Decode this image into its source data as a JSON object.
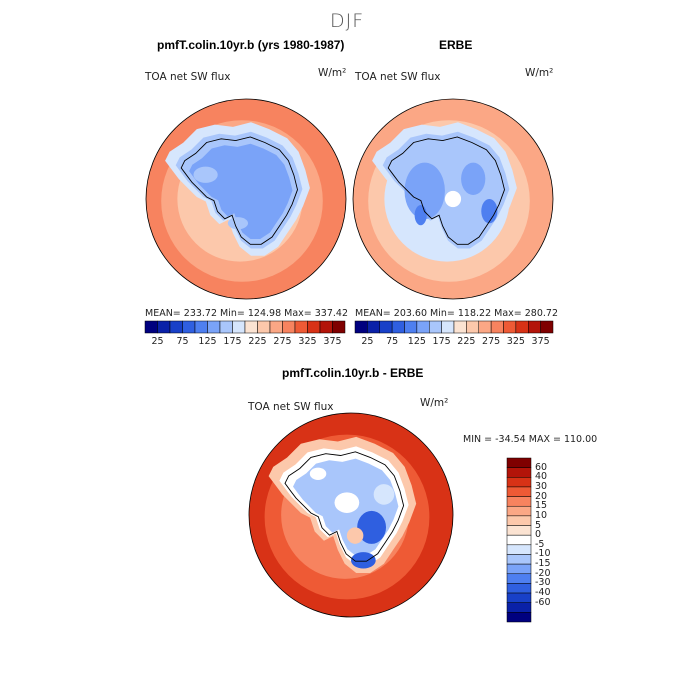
{
  "title": "DJF",
  "panels": {
    "model": {
      "title": "pmfT.colin.10yr.b (yrs 1980-1987)",
      "variable": "TOA net SW flux",
      "units": "W/m²",
      "stats": "MEAN= 233.72   Min= 124.98   Max= 337.42"
    },
    "obs": {
      "title": "ERBE",
      "variable": "TOA net SW flux",
      "units": "W/m²",
      "stats": "MEAN= 203.60   Min= 118.22   Max= 280.72"
    },
    "diff": {
      "title": "pmfT.colin.10yr.b - ERBE",
      "variable": "TOA net SW flux",
      "units": "W/m²",
      "stats": "MIN = -34.54  MAX = 110.00"
    }
  },
  "colorbar_abs": {
    "colors": [
      "#00007f",
      "#0a21a8",
      "#1840c8",
      "#2f5fe0",
      "#4e7ff0",
      "#7aa3f8",
      "#a9c6fb",
      "#d6e6fd",
      "#fbe3d2",
      "#fcc8ab",
      "#fba785",
      "#f7835f",
      "#ee5a35",
      "#d83216",
      "#b31409",
      "#7f0000"
    ],
    "tick_labels": [
      "25",
      "75",
      "125",
      "175",
      "225",
      "275",
      "325",
      "375"
    ]
  },
  "colorbar_diff": {
    "colors": [
      "#7f0000",
      "#b31409",
      "#d83216",
      "#ee5a35",
      "#f7835f",
      "#fba785",
      "#fcc8ab",
      "#fbe3d2",
      "#ffffff",
      "#d6e6fd",
      "#a9c6fb",
      "#7aa3f8",
      "#4e7ff0",
      "#2f5fe0",
      "#1840c8",
      "#0a21a8",
      "#00007f"
    ],
    "tick_labels": [
      "60",
      "40",
      "30",
      "20",
      "15",
      "10",
      "5",
      "0",
      "-5",
      "-10",
      "-15",
      "-20",
      "-30",
      "-40",
      "-60"
    ]
  },
  "map_colors": {
    "ocean_far": "#f7835f",
    "ocean_mid": "#fba785",
    "ocean_near": "#fcc8ab",
    "ice_edge": "#d6e6fd",
    "ice_light": "#a9c6fb",
    "ice": "#7aa3f8",
    "ice_dark": "#4e7ff0",
    "diff_far": "#d83216",
    "diff_mid": "#ee5a35",
    "diff_near": "#f7835f",
    "diff_ice": "#a9c6fb",
    "diff_ice_dark": "#2f5fe0",
    "coast": "#000000"
  }
}
